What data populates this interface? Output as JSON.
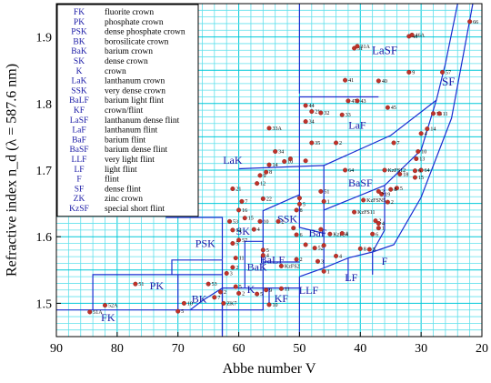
{
  "chart_data": {
    "type": "scatter",
    "xlabel": "Abbe number V",
    "ylabel": "Refractive index n_d (λ = 587.6 nm)",
    "xlim": [
      90,
      20
    ],
    "ylim": [
      1.45,
      1.95
    ],
    "x_reversed": true,
    "grid": true,
    "legend_position": "top-left",
    "x_ticks": [
      "90",
      "80",
      "70",
      "60",
      "50",
      "40",
      "30",
      "20"
    ],
    "y_ticks": [
      "1.5",
      "1.6",
      "1.7",
      "1.8",
      "1.9"
    ],
    "legend": [
      {
        "code": "FK",
        "name": "fluorite crown"
      },
      {
        "code": "PK",
        "name": "phosphate crown"
      },
      {
        "code": "PSK",
        "name": "dense phosphate crown"
      },
      {
        "code": "BK",
        "name": "borosilicate crown"
      },
      {
        "code": "BaK",
        "name": "barium crown"
      },
      {
        "code": "SK",
        "name": "dense crown"
      },
      {
        "code": "K",
        "name": "crown"
      },
      {
        "code": "LaK",
        "name": "lanthanum crown"
      },
      {
        "code": "SSK",
        "name": "very dense crown"
      },
      {
        "code": "BaLF",
        "name": "barium light flint"
      },
      {
        "code": "KF",
        "name": "crown/flint"
      },
      {
        "code": "LaSF",
        "name": "lanthanum dense flint"
      },
      {
        "code": "LaF",
        "name": "lanthanum flint"
      },
      {
        "code": "BaF",
        "name": "barium flint"
      },
      {
        "code": "BaSF",
        "name": "barium dense flint"
      },
      {
        "code": "LLF",
        "name": "very light flint"
      },
      {
        "code": "LF",
        "name": "light flint"
      },
      {
        "code": "F",
        "name": "flint"
      },
      {
        "code": "SF",
        "name": "dense flint"
      },
      {
        "code": "ZK",
        "name": "zinc crown"
      },
      {
        "code": "KzSF",
        "name": "special short flint"
      }
    ],
    "regions": [
      {
        "label": "FK",
        "x": 81.5,
        "y": 1.477,
        "size": 12
      },
      {
        "label": "PK",
        "x": 73.5,
        "y": 1.525,
        "size": 12
      },
      {
        "label": "PSK",
        "x": 65.5,
        "y": 1.588,
        "size": 12
      },
      {
        "label": "BK",
        "x": 66.5,
        "y": 1.505,
        "size": 12
      },
      {
        "label": "BaK",
        "x": 57.0,
        "y": 1.553,
        "size": 12
      },
      {
        "label": "SK",
        "x": 59.3,
        "y": 1.607,
        "size": 12
      },
      {
        "label": "K",
        "x": 58.0,
        "y": 1.519,
        "size": 12
      },
      {
        "label": "LaK",
        "x": 61.0,
        "y": 1.713,
        "size": 12
      },
      {
        "label": "SSK",
        "x": 52.0,
        "y": 1.625,
        "size": 12
      },
      {
        "label": "BaLF",
        "x": 54.5,
        "y": 1.564,
        "size": 12
      },
      {
        "label": "KF",
        "x": 53.0,
        "y": 1.506,
        "size": 12
      },
      {
        "label": "LaSF",
        "x": 36.0,
        "y": 1.878,
        "size": 13
      },
      {
        "label": "LaF",
        "x": 40.5,
        "y": 1.766,
        "size": 12
      },
      {
        "label": "BaF",
        "x": 47.0,
        "y": 1.604,
        "size": 12
      },
      {
        "label": "BaSF",
        "x": 40.0,
        "y": 1.679,
        "size": 12
      },
      {
        "label": "LLF",
        "x": 48.5,
        "y": 1.518,
        "size": 12
      },
      {
        "label": "LF",
        "x": 41.5,
        "y": 1.537,
        "size": 12
      },
      {
        "label": "F",
        "x": 36.0,
        "y": 1.562,
        "size": 12
      },
      {
        "label": "SF",
        "x": 25.5,
        "y": 1.831,
        "size": 13
      }
    ],
    "boundaries": [
      [
        [
          90,
          1.49
        ],
        [
          56,
          1.49
        ],
        [
          56,
          1.523
        ],
        [
          50,
          1.523
        ]
      ],
      [
        [
          84,
          1.49
        ],
        [
          84,
          1.543
        ],
        [
          62.7,
          1.543
        ]
      ],
      [
        [
          70,
          1.49
        ],
        [
          70,
          1.543
        ]
      ],
      [
        [
          71,
          1.543
        ],
        [
          71,
          1.565
        ],
        [
          62.7,
          1.565
        ]
      ],
      [
        [
          62.7,
          1.565
        ],
        [
          62.7,
          1.45
        ]
      ],
      [
        [
          62.7,
          1.565
        ],
        [
          62.7,
          1.629
        ],
        [
          72,
          1.629
        ]
      ],
      [
        [
          68,
          1.49
        ],
        [
          66,
          1.504
        ],
        [
          62.7,
          1.523
        ]
      ],
      [
        [
          62.7,
          1.523
        ],
        [
          56,
          1.523
        ],
        [
          56,
          1.639
        ],
        [
          50,
          1.663
        ]
      ],
      [
        [
          62.7,
          1.523
        ],
        [
          62.7,
          1.452
        ]
      ],
      [
        [
          59,
          1.523
        ],
        [
          59,
          1.593
        ],
        [
          56,
          1.593
        ]
      ],
      [
        [
          56,
          1.562
        ],
        [
          50,
          1.562
        ]
      ],
      [
        [
          55,
          1.523
        ],
        [
          55,
          1.497
        ]
      ],
      [
        [
          50,
          1.54
        ],
        [
          50,
          1.45
        ]
      ],
      [
        [
          50,
          1.54
        ],
        [
          46,
          1.553
        ],
        [
          46,
          1.605
        ],
        [
          50,
          1.614
        ],
        [
          50,
          1.663
        ]
      ],
      [
        [
          46,
          1.605
        ],
        [
          46,
          1.707
        ],
        [
          35,
          1.752
        ],
        [
          27.5,
          1.805
        ]
      ],
      [
        [
          50,
          1.663
        ],
        [
          50,
          1.81
        ],
        [
          37,
          1.81
        ]
      ],
      [
        [
          50,
          1.815
        ],
        [
          50,
          1.95
        ]
      ],
      [
        [
          46,
          1.553
        ],
        [
          42,
          1.568
        ]
      ],
      [
        [
          42,
          1.568
        ],
        [
          42,
          1.534
        ]
      ],
      [
        [
          42,
          1.568
        ],
        [
          38,
          1.577
        ]
      ],
      [
        [
          38,
          1.577
        ],
        [
          38,
          1.543
        ]
      ],
      [
        [
          38,
          1.577
        ],
        [
          34.5,
          1.588
        ],
        [
          30,
          1.659
        ],
        [
          25,
          1.778
        ],
        [
          21.5,
          1.95
        ]
      ],
      [
        [
          46,
          1.64
        ],
        [
          36,
          1.677
        ]
      ],
      [
        [
          36,
          1.677
        ],
        [
          36,
          1.61
        ],
        [
          38,
          1.577
        ]
      ],
      [
        [
          36,
          1.677
        ],
        [
          30,
          1.73
        ],
        [
          27.5,
          1.805
        ],
        [
          26,
          1.86
        ],
        [
          24,
          1.95
        ]
      ],
      [
        [
          60,
          1.702
        ],
        [
          46,
          1.707
        ]
      ]
    ],
    "points": [
      {
        "x": 84.5,
        "y": 1.487,
        "label": "51A"
      },
      {
        "x": 82.0,
        "y": 1.497,
        "label": "52A"
      },
      {
        "x": 77.0,
        "y": 1.529,
        "label": "51"
      },
      {
        "x": 70.0,
        "y": 1.488,
        "label": "5"
      },
      {
        "x": 69.0,
        "y": 1.5,
        "label": "10"
      },
      {
        "x": 65.0,
        "y": 1.529,
        "label": "53"
      },
      {
        "x": 64.0,
        "y": 1.509,
        "label": "7"
      },
      {
        "x": 63.0,
        "y": 1.517,
        "label": "2"
      },
      {
        "x": 62.5,
        "y": 1.5,
        "label": "ZK7"
      },
      {
        "x": 62.0,
        "y": 1.545,
        "label": "3"
      },
      {
        "x": 60.5,
        "y": 1.525,
        "label": "5"
      },
      {
        "x": 60.0,
        "y": 1.515,
        "label": "2"
      },
      {
        "x": 61.0,
        "y": 1.554,
        "label": "2"
      },
      {
        "x": 60.5,
        "y": 1.568,
        "label": "11"
      },
      {
        "x": 61.5,
        "y": 1.623,
        "label": "53"
      },
      {
        "x": 61.0,
        "y": 1.59,
        "label": "5"
      },
      {
        "x": 60.0,
        "y": 1.595,
        "label": "57"
      },
      {
        "x": 60.0,
        "y": 1.64,
        "label": "16"
      },
      {
        "x": 61.0,
        "y": 1.61,
        "label": "14"
      },
      {
        "x": 59.0,
        "y": 1.628,
        "label": "15"
      },
      {
        "x": 57.5,
        "y": 1.611,
        "label": "4"
      },
      {
        "x": 56.5,
        "y": 1.623,
        "label": "10"
      },
      {
        "x": 59.5,
        "y": 1.653,
        "label": "7"
      },
      {
        "x": 61.0,
        "y": 1.672,
        "label": "21"
      },
      {
        "x": 56.0,
        "y": 1.657,
        "label": "22"
      },
      {
        "x": 56.0,
        "y": 1.572,
        "label": "4"
      },
      {
        "x": 56.0,
        "y": 1.58,
        "label": "5"
      },
      {
        "x": 57.0,
        "y": 1.514,
        "label": "5"
      },
      {
        "x": 55.5,
        "y": 1.52,
        "label": "9"
      },
      {
        "x": 55.0,
        "y": 1.498,
        "label": "10"
      },
      {
        "x": 53.0,
        "y": 1.522,
        "label": "11"
      },
      {
        "x": 53.0,
        "y": 1.556,
        "label": "KzFS2"
      },
      {
        "x": 53.5,
        "y": 1.623,
        "label": "2"
      },
      {
        "x": 50.5,
        "y": 1.603,
        "label": "6"
      },
      {
        "x": 50.5,
        "y": 1.64,
        "label": "8"
      },
      {
        "x": 50.0,
        "y": 1.649,
        "label": "5"
      },
      {
        "x": 50.0,
        "y": 1.658,
        "label": ""
      },
      {
        "x": 50.5,
        "y": 1.566,
        "label": "2"
      },
      {
        "x": 51.0,
        "y": 1.613,
        "label": ""
      },
      {
        "x": 49.0,
        "y": 1.588,
        "label": ""
      },
      {
        "x": 47.0,
        "y": 1.563,
        "label": "3"
      },
      {
        "x": 46.0,
        "y": 1.548,
        "label": "1"
      },
      {
        "x": 47.5,
        "y": 1.583,
        "label": "52"
      },
      {
        "x": 46.0,
        "y": 1.587,
        "label": ""
      },
      {
        "x": 46.5,
        "y": 1.611,
        "label": ""
      },
      {
        "x": 45.0,
        "y": 1.604,
        "label": "KzFS4"
      },
      {
        "x": 46.5,
        "y": 1.668,
        "label": "51"
      },
      {
        "x": 46.0,
        "y": 1.653,
        "label": "1"
      },
      {
        "x": 55.0,
        "y": 1.763,
        "label": "33A"
      },
      {
        "x": 54.0,
        "y": 1.728,
        "label": "34"
      },
      {
        "x": 57.0,
        "y": 1.68,
        "label": "12"
      },
      {
        "x": 56.5,
        "y": 1.692,
        "label": "9"
      },
      {
        "x": 55.5,
        "y": 1.697,
        "label": "8"
      },
      {
        "x": 55.0,
        "y": 1.708,
        "label": "14"
      },
      {
        "x": 52.5,
        "y": 1.713,
        "label": "10"
      },
      {
        "x": 51.5,
        "y": 1.717,
        "label": ""
      },
      {
        "x": 49.0,
        "y": 1.714,
        "label": ""
      },
      {
        "x": 49.0,
        "y": 1.797,
        "label": "44"
      },
      {
        "x": 49.0,
        "y": 1.773,
        "label": "34"
      },
      {
        "x": 48.0,
        "y": 1.741,
        "label": "35"
      },
      {
        "x": 48.0,
        "y": 1.788,
        "label": "21"
      },
      {
        "x": 46.5,
        "y": 1.786,
        "label": "32"
      },
      {
        "x": 43.0,
        "y": 1.783,
        "label": "33"
      },
      {
        "x": 42.0,
        "y": 1.804,
        "label": "47"
      },
      {
        "x": 40.5,
        "y": 1.804,
        "label": "43"
      },
      {
        "x": 44.0,
        "y": 1.741,
        "label": "2"
      },
      {
        "x": 41.0,
        "y": 1.883,
        "label": "31"
      },
      {
        "x": 40.5,
        "y": 1.886,
        "label": "31A"
      },
      {
        "x": 42.5,
        "y": 1.835,
        "label": "41"
      },
      {
        "x": 37.0,
        "y": 1.834,
        "label": "40"
      },
      {
        "x": 35.5,
        "y": 1.794,
        "label": "45"
      },
      {
        "x": 32.0,
        "y": 1.901,
        "label": "46"
      },
      {
        "x": 31.5,
        "y": 1.903,
        "label": "46A"
      },
      {
        "x": 32.0,
        "y": 1.847,
        "label": "9"
      },
      {
        "x": 34.5,
        "y": 1.741,
        "label": "7"
      },
      {
        "x": 22.0,
        "y": 1.923,
        "label": "66"
      },
      {
        "x": 26.5,
        "y": 1.847,
        "label": "57"
      },
      {
        "x": 28.0,
        "y": 1.785,
        "label": "56"
      },
      {
        "x": 27.0,
        "y": 1.785,
        "label": "11"
      },
      {
        "x": 29.0,
        "y": 1.762,
        "label": "14"
      },
      {
        "x": 30.0,
        "y": 1.755,
        "label": "4"
      },
      {
        "x": 30.5,
        "y": 1.728,
        "label": "10"
      },
      {
        "x": 30.8,
        "y": 1.717,
        "label": "13"
      },
      {
        "x": 30.0,
        "y": 1.7,
        "label": "64"
      },
      {
        "x": 31.0,
        "y": 1.689,
        "label": "15"
      },
      {
        "x": 31.0,
        "y": 1.699,
        "label": "6"
      },
      {
        "x": 33.5,
        "y": 1.694,
        "label": "18"
      },
      {
        "x": 34.0,
        "y": 1.673,
        "label": "5"
      },
      {
        "x": 35.0,
        "y": 1.671,
        "label": "8"
      },
      {
        "x": 36.5,
        "y": 1.664,
        "label": "19"
      },
      {
        "x": 35.5,
        "y": 1.652,
        "label": "2"
      },
      {
        "x": 37.0,
        "y": 1.668,
        "label": "2"
      },
      {
        "x": 42.5,
        "y": 1.7,
        "label": "64"
      },
      {
        "x": 36.0,
        "y": 1.7,
        "label": "KzFS12"
      },
      {
        "x": 39.5,
        "y": 1.655,
        "label": "KzFSN5"
      },
      {
        "x": 41.0,
        "y": 1.637,
        "label": "KzFS11"
      },
      {
        "x": 37.5,
        "y": 1.624,
        "label": "2"
      },
      {
        "x": 37.0,
        "y": 1.62,
        "label": "4"
      },
      {
        "x": 37.0,
        "y": 1.613,
        "label": "1"
      },
      {
        "x": 38.0,
        "y": 1.604,
        "label": "6"
      },
      {
        "x": 43.0,
        "y": 1.605,
        "label": "4"
      },
      {
        "x": 40.0,
        "y": 1.582,
        "label": "8"
      },
      {
        "x": 38.5,
        "y": 1.581,
        "label": "5"
      },
      {
        "x": 44.0,
        "y": 1.571,
        "label": "4"
      }
    ]
  }
}
